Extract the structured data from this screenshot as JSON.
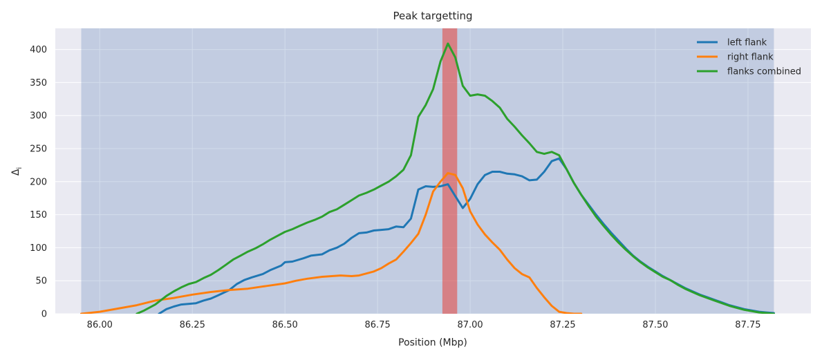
{
  "chart_data": {
    "type": "line",
    "title": "Peak targetting",
    "xlabel": "Position (Mbp)",
    "ylabel": "Δ",
    "ylabel_sub": "i",
    "xlim": [
      85.88,
      87.92
    ],
    "ylim": [
      0,
      432
    ],
    "xticks": [
      86.0,
      86.25,
      86.5,
      86.75,
      87.0,
      87.25,
      87.5,
      87.75
    ],
    "xtick_labels": [
      "86.00",
      "86.25",
      "86.50",
      "86.75",
      "87.00",
      "87.25",
      "87.50",
      "87.75"
    ],
    "yticks": [
      0,
      50,
      100,
      150,
      200,
      250,
      300,
      350,
      400
    ],
    "ytick_labels": [
      "0",
      "50",
      "100",
      "150",
      "200",
      "250",
      "300",
      "350",
      "400"
    ],
    "grid": true,
    "legend_position": "top-right",
    "background": "#eaeaf2",
    "spans": [
      {
        "name": "region",
        "x0": 85.95,
        "x1": 87.82,
        "color": "#4c72b0",
        "alpha": 0.25
      },
      {
        "name": "peak",
        "x0": 86.925,
        "x1": 86.965,
        "color": "#e8413b",
        "alpha": 0.55
      }
    ],
    "series": [
      {
        "name": "left flank",
        "color": "#1f77b4",
        "points": [
          [
            86.16,
            0
          ],
          [
            86.18,
            7
          ],
          [
            86.2,
            11
          ],
          [
            86.22,
            14
          ],
          [
            86.26,
            16
          ],
          [
            86.28,
            20
          ],
          [
            86.3,
            23
          ],
          [
            86.32,
            28
          ],
          [
            86.35,
            36
          ],
          [
            86.37,
            45
          ],
          [
            86.39,
            51
          ],
          [
            86.41,
            55
          ],
          [
            86.44,
            60
          ],
          [
            86.46,
            66
          ],
          [
            86.49,
            73
          ],
          [
            86.5,
            78
          ],
          [
            86.52,
            79
          ],
          [
            86.55,
            84
          ],
          [
            86.57,
            88
          ],
          [
            86.6,
            90
          ],
          [
            86.62,
            96
          ],
          [
            86.64,
            100
          ],
          [
            86.66,
            106
          ],
          [
            86.68,
            115
          ],
          [
            86.7,
            122
          ],
          [
            86.72,
            123
          ],
          [
            86.74,
            126
          ],
          [
            86.76,
            127
          ],
          [
            86.78,
            128
          ],
          [
            86.8,
            132
          ],
          [
            86.82,
            131
          ],
          [
            86.84,
            144
          ],
          [
            86.86,
            188
          ],
          [
            86.88,
            193
          ],
          [
            86.9,
            192
          ],
          [
            86.92,
            193
          ],
          [
            86.94,
            196
          ],
          [
            86.96,
            178
          ],
          [
            86.98,
            160
          ],
          [
            87.0,
            174
          ],
          [
            87.02,
            196
          ],
          [
            87.04,
            210
          ],
          [
            87.06,
            215
          ],
          [
            87.08,
            215
          ],
          [
            87.1,
            212
          ],
          [
            87.12,
            211
          ],
          [
            87.14,
            208
          ],
          [
            87.16,
            202
          ],
          [
            87.18,
            203
          ],
          [
            87.2,
            215
          ],
          [
            87.22,
            231
          ],
          [
            87.24,
            235
          ],
          [
            87.26,
            219
          ],
          [
            87.28,
            198
          ],
          [
            87.3,
            180
          ],
          [
            87.32,
            165
          ],
          [
            87.34,
            150
          ],
          [
            87.36,
            136
          ],
          [
            87.38,
            123
          ],
          [
            87.4,
            111
          ],
          [
            87.42,
            99
          ],
          [
            87.44,
            88
          ],
          [
            87.46,
            79
          ],
          [
            87.48,
            71
          ],
          [
            87.5,
            64
          ],
          [
            87.52,
            57
          ],
          [
            87.54,
            51
          ],
          [
            87.56,
            45
          ],
          [
            87.58,
            39
          ],
          [
            87.6,
            34
          ],
          [
            87.62,
            29
          ],
          [
            87.64,
            25
          ],
          [
            87.66,
            21
          ],
          [
            87.68,
            17
          ],
          [
            87.7,
            13
          ],
          [
            87.72,
            10
          ],
          [
            87.74,
            7
          ],
          [
            87.76,
            5
          ],
          [
            87.78,
            3
          ],
          [
            87.8,
            2
          ],
          [
            87.82,
            1
          ]
        ]
      },
      {
        "name": "right flank",
        "color": "#ff7f0e",
        "points": [
          [
            85.95,
            0
          ],
          [
            86.0,
            3
          ],
          [
            86.05,
            8
          ],
          [
            86.1,
            13
          ],
          [
            86.15,
            20
          ],
          [
            86.2,
            24
          ],
          [
            86.25,
            29
          ],
          [
            86.3,
            33
          ],
          [
            86.35,
            36
          ],
          [
            86.4,
            38
          ],
          [
            86.45,
            42
          ],
          [
            86.5,
            46
          ],
          [
            86.53,
            50
          ],
          [
            86.56,
            53
          ],
          [
            86.6,
            56
          ],
          [
            86.65,
            58
          ],
          [
            86.68,
            57
          ],
          [
            86.7,
            58
          ],
          [
            86.72,
            61
          ],
          [
            86.74,
            64
          ],
          [
            86.76,
            69
          ],
          [
            86.78,
            76
          ],
          [
            86.8,
            82
          ],
          [
            86.82,
            94
          ],
          [
            86.84,
            107
          ],
          [
            86.86,
            121
          ],
          [
            86.88,
            150
          ],
          [
            86.9,
            185
          ],
          [
            86.92,
            200
          ],
          [
            86.94,
            213
          ],
          [
            86.96,
            210
          ],
          [
            86.98,
            190
          ],
          [
            87.0,
            155
          ],
          [
            87.02,
            135
          ],
          [
            87.04,
            120
          ],
          [
            87.06,
            108
          ],
          [
            87.08,
            97
          ],
          [
            87.1,
            82
          ],
          [
            87.12,
            69
          ],
          [
            87.14,
            60
          ],
          [
            87.16,
            55
          ],
          [
            87.18,
            39
          ],
          [
            87.2,
            25
          ],
          [
            87.22,
            12
          ],
          [
            87.24,
            3
          ],
          [
            87.26,
            1
          ],
          [
            87.28,
            0
          ],
          [
            87.3,
            0
          ]
        ]
      },
      {
        "name": "flanks combined",
        "color": "#2ca02c",
        "points": [
          [
            86.1,
            0
          ],
          [
            86.12,
            5
          ],
          [
            86.15,
            14
          ],
          [
            86.18,
            27
          ],
          [
            86.2,
            34
          ],
          [
            86.22,
            40
          ],
          [
            86.24,
            45
          ],
          [
            86.26,
            48
          ],
          [
            86.28,
            54
          ],
          [
            86.3,
            59
          ],
          [
            86.32,
            66
          ],
          [
            86.34,
            74
          ],
          [
            86.36,
            82
          ],
          [
            86.38,
            88
          ],
          [
            86.4,
            94
          ],
          [
            86.42,
            99
          ],
          [
            86.44,
            105
          ],
          [
            86.46,
            112
          ],
          [
            86.48,
            118
          ],
          [
            86.5,
            124
          ],
          [
            86.52,
            128
          ],
          [
            86.54,
            133
          ],
          [
            86.56,
            138
          ],
          [
            86.58,
            142
          ],
          [
            86.6,
            147
          ],
          [
            86.62,
            154
          ],
          [
            86.64,
            158
          ],
          [
            86.66,
            165
          ],
          [
            86.68,
            172
          ],
          [
            86.7,
            179
          ],
          [
            86.72,
            183
          ],
          [
            86.74,
            188
          ],
          [
            86.76,
            194
          ],
          [
            86.78,
            200
          ],
          [
            86.8,
            208
          ],
          [
            86.82,
            218
          ],
          [
            86.84,
            240
          ],
          [
            86.86,
            298
          ],
          [
            86.88,
            316
          ],
          [
            86.9,
            340
          ],
          [
            86.92,
            382
          ],
          [
            86.94,
            409
          ],
          [
            86.96,
            388
          ],
          [
            86.98,
            345
          ],
          [
            87.0,
            330
          ],
          [
            87.02,
            332
          ],
          [
            87.04,
            330
          ],
          [
            87.06,
            322
          ],
          [
            87.08,
            312
          ],
          [
            87.1,
            295
          ],
          [
            87.12,
            283
          ],
          [
            87.14,
            270
          ],
          [
            87.16,
            258
          ],
          [
            87.18,
            245
          ],
          [
            87.2,
            242
          ],
          [
            87.22,
            245
          ],
          [
            87.24,
            240
          ],
          [
            87.26,
            219
          ],
          [
            87.28,
            198
          ],
          [
            87.3,
            180
          ],
          [
            87.32,
            163
          ],
          [
            87.34,
            147
          ],
          [
            87.36,
            133
          ],
          [
            87.38,
            120
          ],
          [
            87.4,
            108
          ],
          [
            87.42,
            97
          ],
          [
            87.44,
            87
          ],
          [
            87.46,
            78
          ],
          [
            87.48,
            70
          ],
          [
            87.5,
            63
          ],
          [
            87.52,
            56
          ],
          [
            87.54,
            51
          ],
          [
            87.56,
            44
          ],
          [
            87.58,
            38
          ],
          [
            87.6,
            33
          ],
          [
            87.62,
            28
          ],
          [
            87.64,
            24
          ],
          [
            87.66,
            20
          ],
          [
            87.68,
            16
          ],
          [
            87.7,
            12
          ],
          [
            87.72,
            9
          ],
          [
            87.74,
            6
          ],
          [
            87.76,
            4
          ],
          [
            87.78,
            2
          ],
          [
            87.8,
            1
          ],
          [
            87.82,
            0
          ]
        ]
      }
    ]
  }
}
